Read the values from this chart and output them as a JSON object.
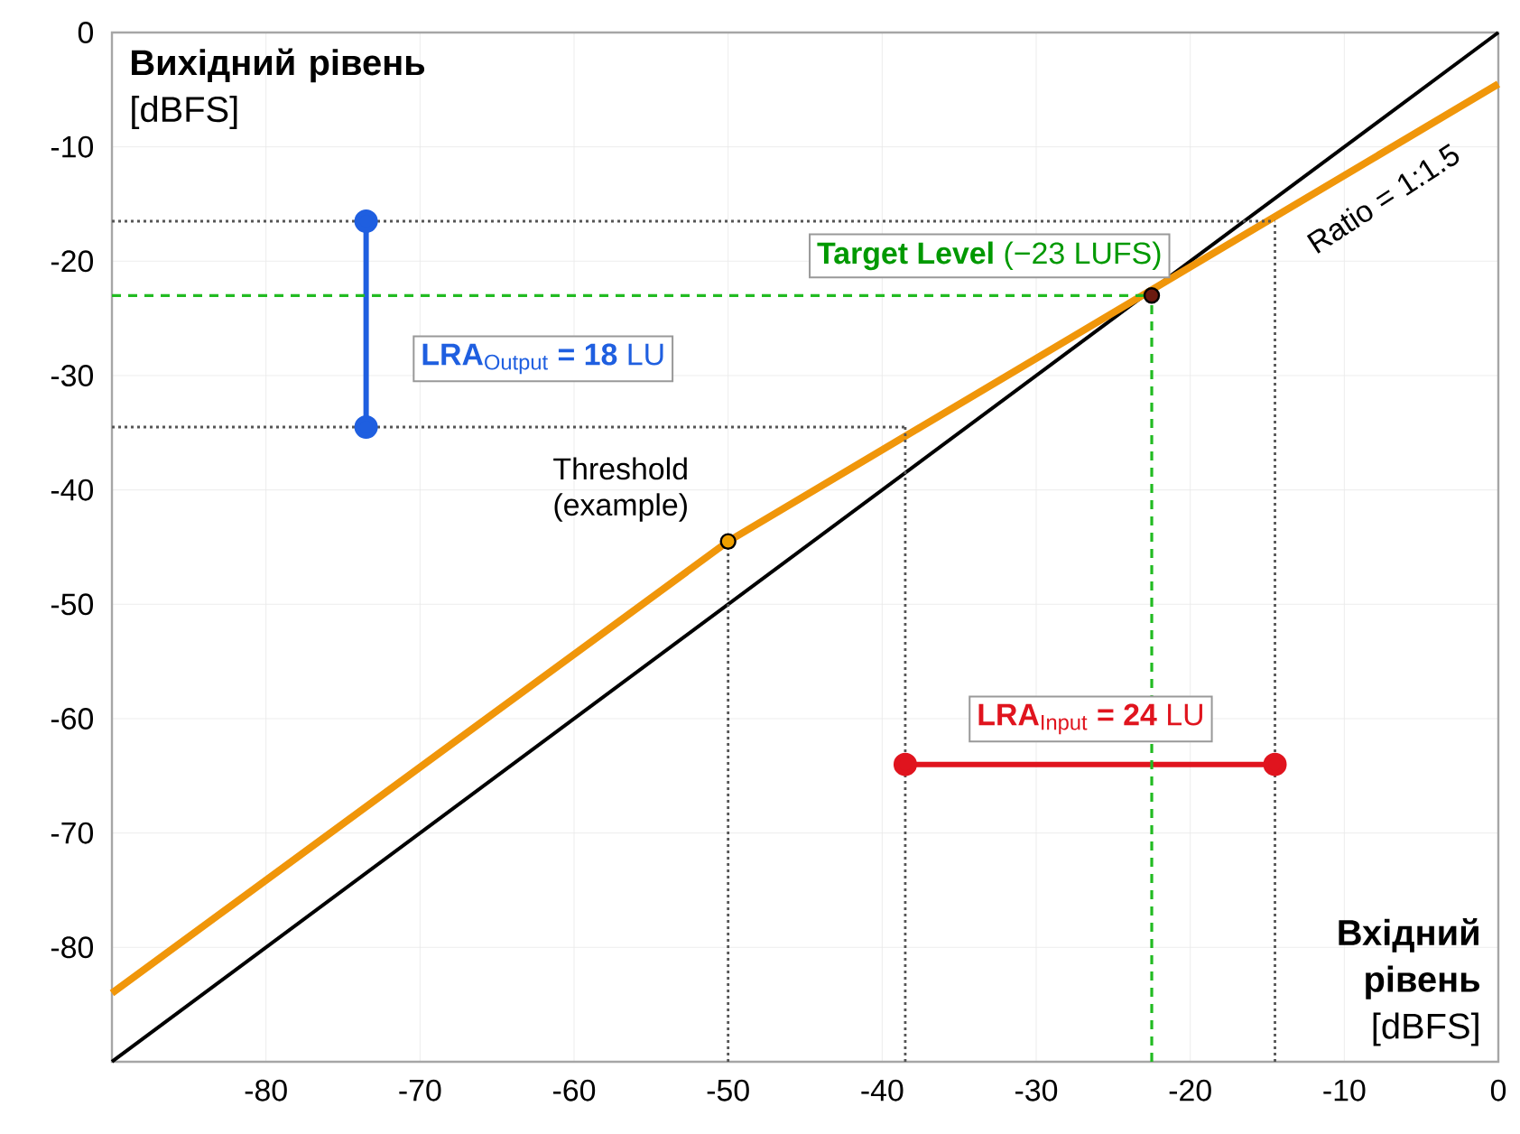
{
  "chart_data": {
    "type": "line",
    "xlabel": "**Вхідний рівень** [dBFS]",
    "ylabel": "**Вихідний рівень** [dBFS]",
    "xlim": [
      -90,
      0
    ],
    "ylim": [
      -90,
      0
    ],
    "xticks": [
      -80,
      -70,
      -60,
      -50,
      -40,
      -30,
      -20,
      -10,
      0
    ],
    "yticks": [
      -80,
      -70,
      -60,
      -50,
      -40,
      -30,
      -20,
      -10,
      0
    ],
    "grid": true,
    "series": [
      {
        "color": "#000000",
        "line_style": "solid",
        "marker": "none",
        "x": [
          -90,
          0
        ],
        "values": [
          -90,
          0
        ]
      },
      {
        "color": "#f0960a",
        "line_style": "solid",
        "marker": "none",
        "x": [
          -90,
          -50,
          0
        ],
        "values": [
          -84,
          -44.5,
          -4.5
        ]
      },
      {
        "color": "#1f5fe0",
        "line_style": "solid",
        "marker": "circle",
        "x": [
          -73.5,
          -73.5
        ],
        "values": [
          -16.5,
          -34.5
        ]
      },
      {
        "color": "#e0141e",
        "line_style": "solid",
        "marker": "circle",
        "x": [
          -38.5,
          -14.5
        ],
        "values": [
          -64,
          -64
        ]
      },
      {
        "type": "line",
        "color": "#555555",
        "line_style": "dotted",
        "marker": "none",
        "x": [
          -90,
          -14.5
        ],
        "values": [
          -16.5,
          -16.5
        ]
      },
      {
        "type": "line",
        "color": "#555555",
        "line_style": "dotted",
        "marker": "none",
        "x": [
          -90,
          -38.5
        ],
        "values": [
          -34.5,
          -34.5
        ]
      },
      {
        "type": "line",
        "color": "#555555",
        "line_style": "dotted",
        "marker": "none",
        "x": [
          -50,
          -50
        ],
        "values": [
          -90,
          -44.5
        ]
      },
      {
        "type": "line",
        "color": "#555555",
        "line_style": "dotted",
        "marker": "none",
        "x": [
          -38.5,
          -38.5
        ],
        "values": [
          -90,
          -34.5
        ]
      },
      {
        "type": "line",
        "color": "#555555",
        "line_style": "dotted",
        "marker": "none",
        "x": [
          -14.5,
          -14.5
        ],
        "values": [
          -90,
          -16.5
        ]
      },
      {
        "type": "line",
        "color": "#22bb22",
        "line_style": "dashed",
        "marker": "none",
        "x": [
          -90,
          -22.5
        ],
        "values": [
          -23,
          -23
        ]
      },
      {
        "type": "line",
        "color": "#22bb22",
        "line_style": "dashed",
        "marker": "none",
        "x": [
          -22.5,
          -22.5
        ],
        "values": [
          -90,
          -23
        ]
      },
      {
        "type": "scatter",
        "color": "#f0a000",
        "marker": "circle",
        "x": [
          -50
        ],
        "values": [
          -44.5
        ]
      },
      {
        "type": "scatter",
        "color": "#6b1a10",
        "marker": "circle",
        "x": [
          -22.5
        ],
        "values": [
          -23
        ]
      }
    ],
    "annotations": [
      "**Target Level** (−23 LUFS)",
      "**LRA**$_{Output}$ **= 18** LU",
      "**LRA**$_{Input}$ **= 24** LU",
      "Threshold (example)",
      "Ratio = 1:1.5"
    ]
  }
}
